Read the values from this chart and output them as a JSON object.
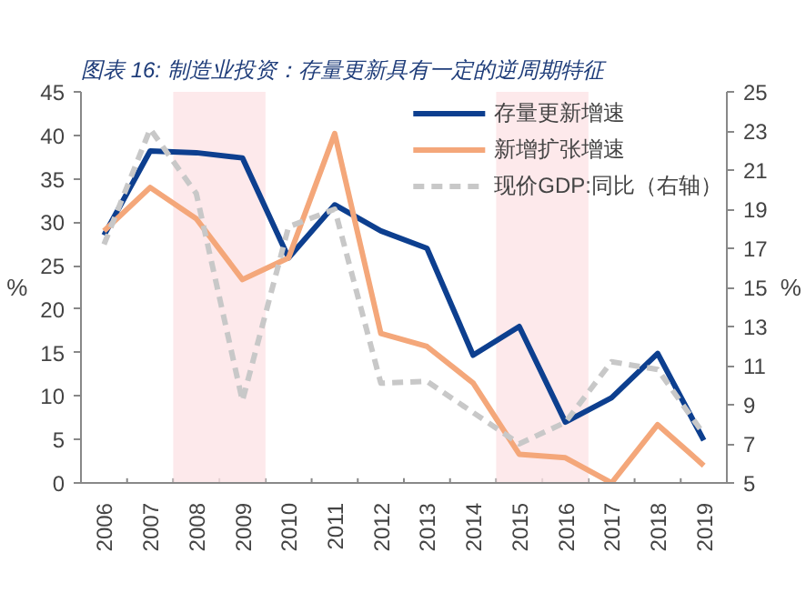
{
  "chart_data": {
    "type": "line",
    "title": "图表 16:  制造业投资：存量更新具有一定的逆周期特征",
    "categories": [
      "2006",
      "2007",
      "2008",
      "2009",
      "2010",
      "2011",
      "2012",
      "2013",
      "2014",
      "2015",
      "2016",
      "2017",
      "2018",
      "2019"
    ],
    "series": [
      {
        "name": "存量更新增速",
        "color": "#0d3f8f",
        "values": [
          28.5,
          38.2,
          38.0,
          37.4,
          25.9,
          32.0,
          29.0,
          27.0,
          14.7,
          18.0,
          7.0,
          9.8,
          14.9,
          4.9
        ]
      },
      {
        "name": "新增扩张增速",
        "color": "#f4a77a",
        "values": [
          29.0,
          34.0,
          30.4,
          23.4,
          25.9,
          40.2,
          17.2,
          15.7,
          11.5,
          3.3,
          2.9,
          0.0,
          6.7,
          2.0
        ]
      },
      {
        "name": "现价GDP:同比（右轴）",
        "color": "#c8c8c8",
        "axis": "y2",
        "line_style": "dashed",
        "values": [
          17.2,
          23.1,
          19.8,
          9.2,
          18.1,
          19.0,
          10.1,
          10.2,
          8.6,
          7.0,
          8.1,
          11.2,
          10.8,
          7.5
        ]
      }
    ],
    "ylabel": "%",
    "y2label": "%",
    "ylim": [
      0,
      45
    ],
    "yticks": [
      0,
      5,
      10,
      15,
      20,
      25,
      30,
      35,
      40,
      45
    ],
    "y2lim": [
      5,
      25
    ],
    "y2ticks": [
      5,
      7,
      9,
      11,
      13,
      15,
      17,
      19,
      21,
      23,
      25
    ],
    "bands": [
      {
        "axis": "x",
        "from": "2008",
        "to": "2009",
        "color": "#fde3e6"
      },
      {
        "axis": "x",
        "from": "2015",
        "to": "2016",
        "color": "#fde3e6"
      }
    ],
    "grid": false,
    "legend": "top right",
    "marker": "none",
    "line_style": "solid"
  }
}
